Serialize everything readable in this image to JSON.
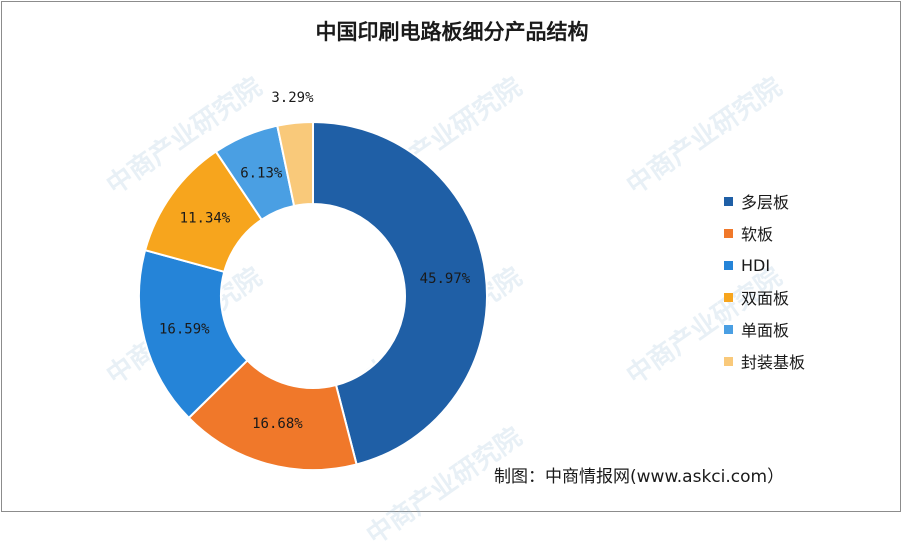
{
  "chart_data": {
    "type": "pie",
    "donut": true,
    "title": "中国印刷电路板细分产品结构",
    "categories": [
      "多层板",
      "软板",
      "HDI",
      "双面板",
      "单面板",
      "封装基板"
    ],
    "values": [
      45.97,
      16.68,
      16.59,
      11.34,
      6.13,
      3.29
    ],
    "labels": [
      "45.97%",
      "16.68%",
      "16.59%",
      "11.34%",
      "6.13%",
      "3.29%"
    ],
    "colors": [
      "#1f5fa6",
      "#f0782a",
      "#2584d8",
      "#f7a51d",
      "#4a9fe3",
      "#f9c97a"
    ],
    "legend_position": "right"
  },
  "source": "制图：中商情报网(www.askci.com）",
  "watermark": "中商产业研究院"
}
